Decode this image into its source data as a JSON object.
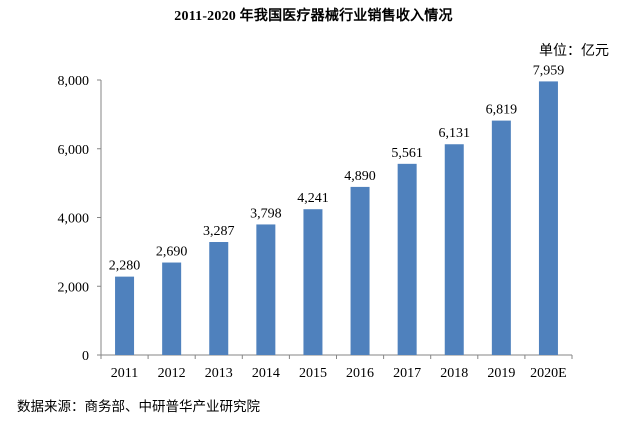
{
  "chart_data": {
    "type": "bar",
    "title": "2011-2020 年我国医疗器械行业销售收入情况",
    "unit_label": "单位：亿元",
    "xlabel": "",
    "ylabel": "",
    "categories": [
      "2011",
      "2012",
      "2013",
      "2014",
      "2015",
      "2016",
      "2017",
      "2018",
      "2019",
      "2020E"
    ],
    "values": [
      2280,
      2690,
      3287,
      3798,
      4241,
      4890,
      5561,
      6131,
      6819,
      7959
    ],
    "value_labels": [
      "2,280",
      "2,690",
      "3,287",
      "3,798",
      "4,241",
      "4,890",
      "5,561",
      "6,131",
      "6,819",
      "7,959"
    ],
    "ylim": [
      0,
      8000
    ],
    "yticks": [
      0,
      2000,
      4000,
      6000,
      8000
    ],
    "ytick_labels": [
      "0",
      "2,000",
      "4,000",
      "6,000",
      "8,000"
    ],
    "grid": false,
    "legend": null,
    "bar_color": "#4f81bd",
    "source": "数据来源：商务部、中研普华产业研究院"
  }
}
